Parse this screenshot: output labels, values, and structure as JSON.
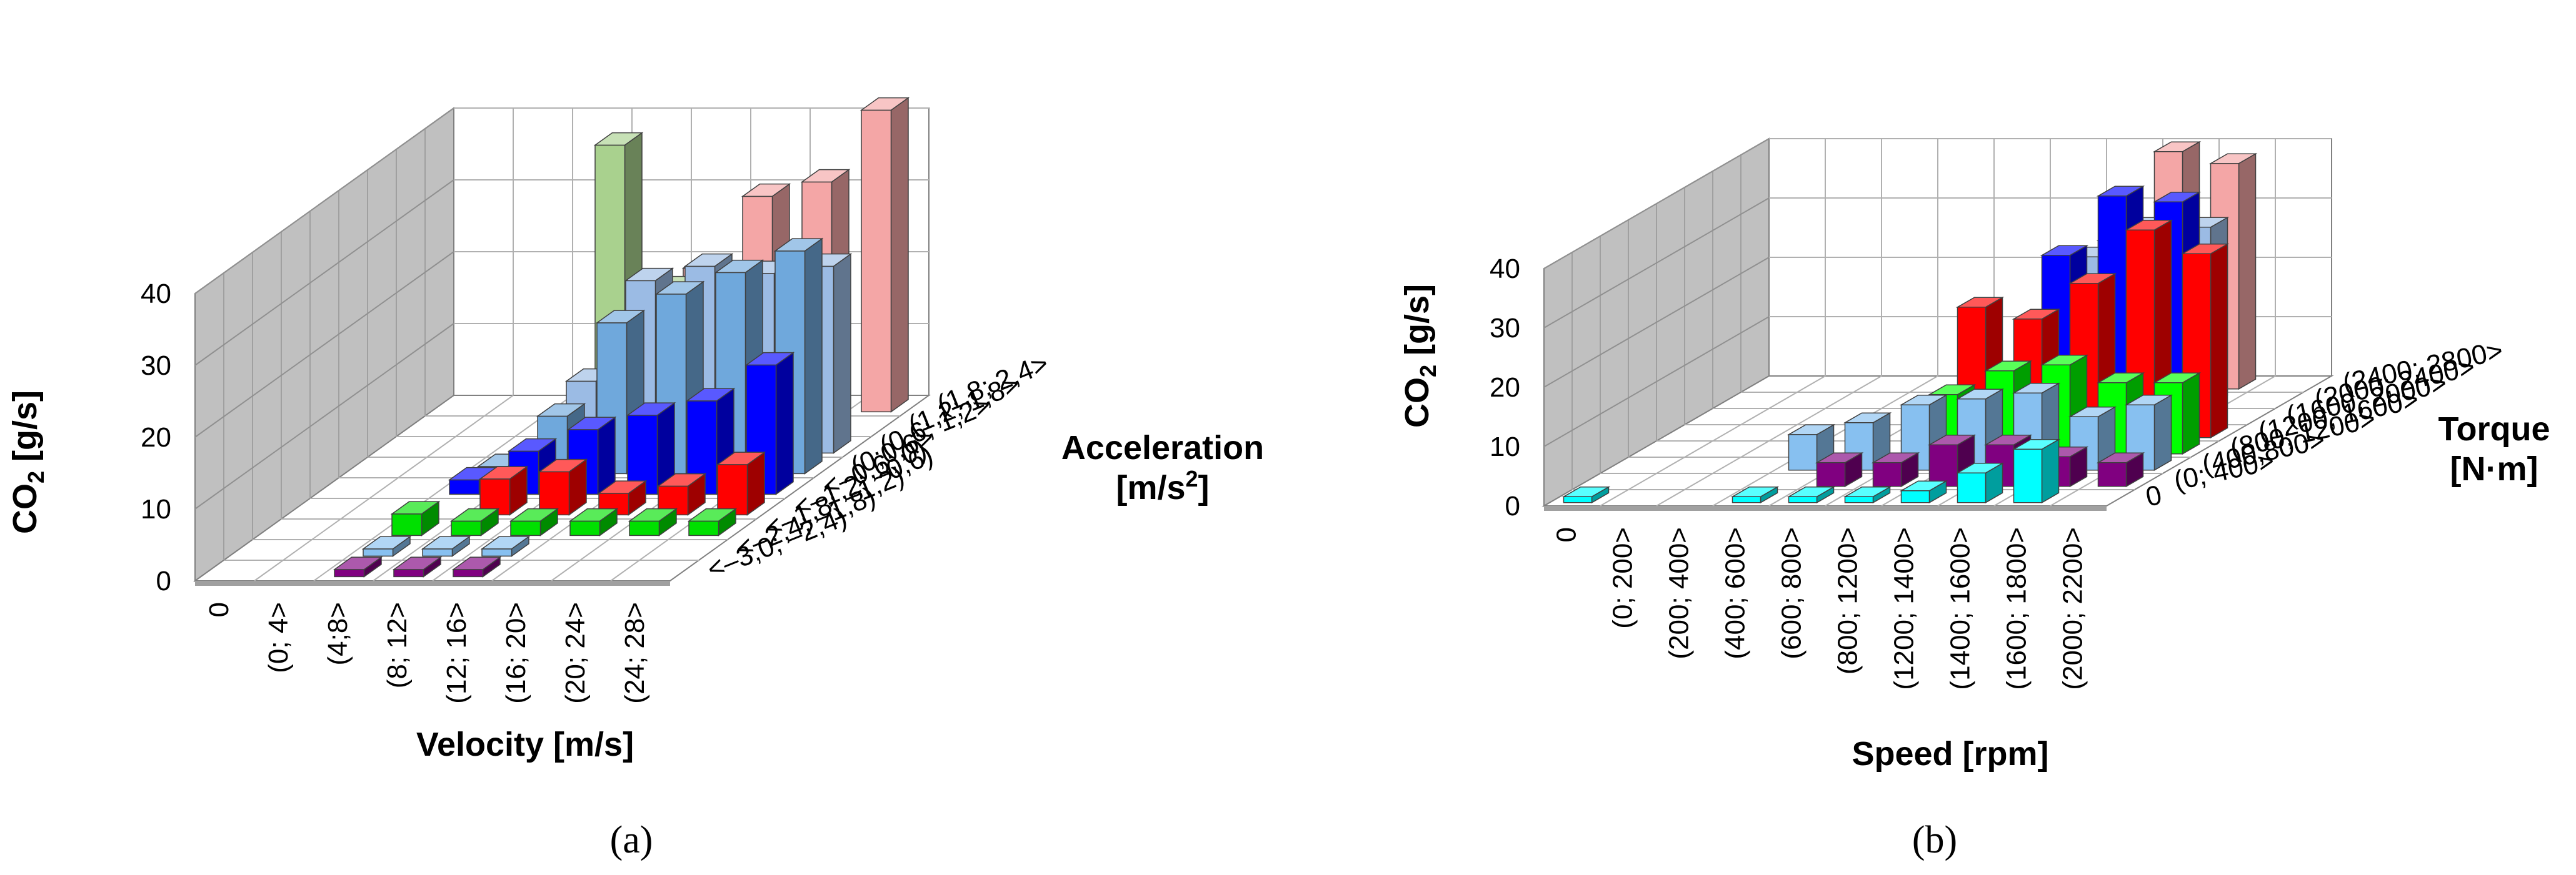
{
  "chart_data": [
    {
      "type": "bar3d",
      "panel_label": "(a)",
      "ylabel": "CO₂ [g/s]",
      "ylabel_main": "CO",
      "ylabel_sub": "2",
      "ylabel_unit": " [g/s]",
      "xlabel": "Velocity [m/s]",
      "zlabel_line1": "Acceleration",
      "zlabel_line2_main": "[m/s",
      "zlabel_line2_sup": "2",
      "zlabel_line2_end": "]",
      "ylim": [
        0,
        40
      ],
      "yticks": [
        "0",
        "10",
        "20",
        "30",
        "40"
      ],
      "x_categories": [
        "0",
        "(0; 4>",
        "(4;8>",
        "(8; 12>",
        "(12; 16>",
        "(16; 20>",
        "(20; 24>",
        "(24; 28>"
      ],
      "z_categories": [
        "<–3,0; –2,4)",
        "<–2,4; –1,8)",
        "<–1,8; –1,2)",
        "<–1,2; –0,6)",
        "<–0,6; 0)",
        "(0;0,6>",
        "(0,6; 1,2>",
        "(1,2; 1,8>",
        "(1,8; 2,4>"
      ],
      "series": [
        {
          "color": "#800080",
          "values": [
            null,
            null,
            1,
            1,
            1,
            null,
            null,
            null
          ]
        },
        {
          "color": "#87c0f0",
          "values": [
            null,
            null,
            1,
            1,
            1,
            null,
            null,
            null
          ]
        },
        {
          "color": "#00e000",
          "values": [
            null,
            null,
            3,
            2,
            2,
            2,
            2,
            2
          ]
        },
        {
          "color": "#ff0000",
          "values": [
            null,
            null,
            null,
            5,
            6,
            3,
            4,
            7
          ]
        },
        {
          "color": "#0000ff",
          "values": [
            null,
            null,
            2,
            6,
            9,
            11,
            13,
            18
          ]
        },
        {
          "color": "#6fa8dc",
          "values": [
            null,
            null,
            1,
            8,
            21,
            25,
            28,
            31
          ]
        },
        {
          "color": "#9bbbe4",
          "values": [
            null,
            null,
            null,
            10,
            24,
            26,
            25,
            26
          ]
        },
        {
          "color": "#a9d18e",
          "values": [
            null,
            null,
            null,
            40,
            20,
            null,
            null,
            null
          ]
        },
        {
          "color": "#f4a6a6",
          "values": [
            null,
            null,
            null,
            10,
            20,
            30,
            32,
            42
          ]
        }
      ]
    },
    {
      "type": "bar3d",
      "panel_label": "(b)",
      "ylabel": "CO₂ [g/s]",
      "ylabel_main": "CO",
      "ylabel_sub": "2",
      "ylabel_unit": " [g/s]",
      "xlabel": "Speed [rpm]",
      "zlabel_line1": "Torque",
      "zlabel_line2": "[N·m]",
      "ylim": [
        0,
        40
      ],
      "yticks": [
        "0",
        "10",
        "20",
        "30",
        "40"
      ],
      "x_categories": [
        "0",
        "(0; 200>",
        "(200; 400>",
        "(400; 600>",
        "(600; 800>",
        "(800; 1200>",
        "(1200; 1400>",
        "(1400; 1600>",
        "(1600; 1800>",
        "(2000; 2200>"
      ],
      "z_categories": [
        "0",
        "(0; 400>",
        "(400;800>",
        "(800; 1200>",
        "(1200; 1600>",
        "(1600; 2000>",
        "(2000; 2400>",
        "(2400; 2800>"
      ],
      "series": [
        {
          "color": "#00ffff",
          "values": [
            1,
            null,
            null,
            1,
            1,
            1,
            2,
            5,
            9,
            null
          ]
        },
        {
          "color": "#800080",
          "values": [
            null,
            null,
            null,
            null,
            4,
            4,
            7,
            7,
            5,
            4
          ]
        },
        {
          "color": "#87c0f0",
          "values": [
            null,
            null,
            null,
            6,
            8,
            11,
            12,
            13,
            9,
            11
          ]
        },
        {
          "color": "#00ff00",
          "values": [
            null,
            null,
            null,
            null,
            null,
            10,
            14,
            15,
            12,
            12
          ]
        },
        {
          "color": "#ff0000",
          "values": [
            null,
            null,
            null,
            null,
            null,
            22,
            20,
            26,
            35,
            31
          ]
        },
        {
          "color": "#0000ff",
          "values": [
            null,
            null,
            null,
            null,
            null,
            null,
            28,
            38,
            37,
            null
          ]
        },
        {
          "color": "#9bbbe4",
          "values": [
            null,
            null,
            null,
            null,
            null,
            null,
            25,
            30,
            30,
            null
          ]
        },
        {
          "color": "#f4a6a6",
          "values": [
            null,
            null,
            null,
            null,
            null,
            null,
            25,
            40,
            38,
            null
          ]
        }
      ]
    }
  ]
}
